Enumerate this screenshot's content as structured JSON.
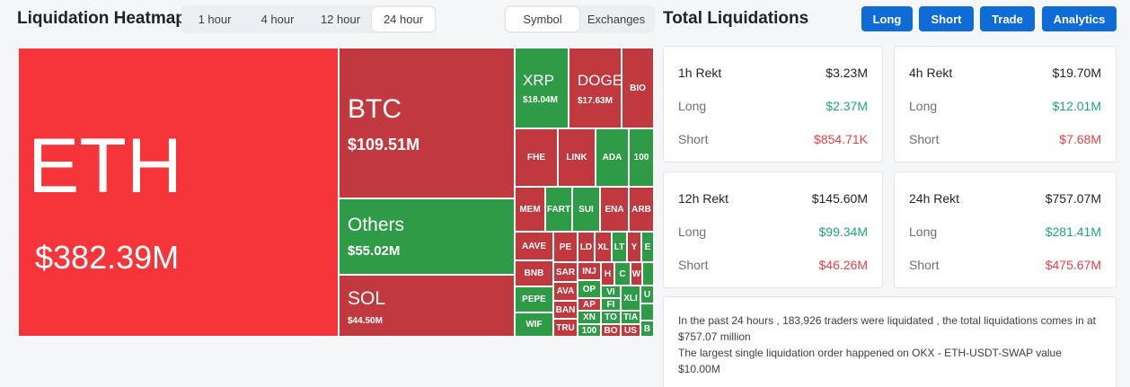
{
  "heatmap": {
    "title": "Liquidation Heatmap",
    "time_options": [
      "1 hour",
      "4 hour",
      "12 hour",
      "24 hour"
    ],
    "time_selected": "24 hour",
    "view_options": [
      "Symbol",
      "Exchanges"
    ],
    "view_selected": "Symbol",
    "tiles": {
      "eth": {
        "symbol": "ETH",
        "value": "$382.39M"
      },
      "btc": {
        "symbol": "BTC",
        "value": "$109.51M"
      },
      "others": {
        "symbol": "Others",
        "value": "$55.02M"
      },
      "sol": {
        "symbol": "SOL",
        "value": "$44.50M"
      },
      "xrp": {
        "symbol": "XRP",
        "value": "$18.04M"
      },
      "doge": {
        "symbol": "DOGE",
        "value": "$17.63M"
      },
      "bio": {
        "symbol": "BIO"
      },
      "fhe": {
        "symbol": "FHE"
      },
      "link": {
        "symbol": "LINK"
      },
      "ada": {
        "symbol": "ADA"
      },
      "t100": {
        "symbol": "100"
      },
      "mem": {
        "symbol": "MEM"
      },
      "fart": {
        "symbol": "FART"
      },
      "sui": {
        "symbol": "SUI"
      },
      "ena": {
        "symbol": "ENA"
      },
      "arb": {
        "symbol": "ARB"
      },
      "aave": {
        "symbol": "AAVE"
      },
      "bnb": {
        "symbol": "BNB"
      },
      "pepe": {
        "symbol": "PEPE"
      },
      "wif": {
        "symbol": "WIF"
      },
      "pe": {
        "symbol": "PE"
      },
      "sar": {
        "symbol": "SAR"
      },
      "ava": {
        "symbol": "AVA"
      },
      "ban": {
        "symbol": "BAN"
      },
      "tru": {
        "symbol": "TRU"
      },
      "ld": {
        "symbol": "LD"
      },
      "xl": {
        "symbol": "XL"
      },
      "inj": {
        "symbol": "INJ"
      },
      "op": {
        "symbol": "OP"
      },
      "ap": {
        "symbol": "AP"
      },
      "xn": {
        "symbol": "XN"
      },
      "t100b": {
        "symbol": "100"
      },
      "lt": {
        "symbol": "LT"
      },
      "h": {
        "symbol": "H"
      },
      "vi": {
        "symbol": "VI"
      },
      "fi": {
        "symbol": "FI"
      },
      "to": {
        "symbol": "TO"
      },
      "bo": {
        "symbol": "BO"
      },
      "y": {
        "symbol": "Y"
      },
      "e": {
        "symbol": "E"
      },
      "c": {
        "symbol": "C"
      },
      "w": {
        "symbol": "W"
      },
      "xli": {
        "symbol": "XLI"
      },
      "tia": {
        "symbol": "TIA"
      },
      "us": {
        "symbol": "US"
      },
      "b": {
        "symbol": "B"
      },
      "u": {
        "symbol": "U"
      }
    }
  },
  "total": {
    "title": "Total Liquidations",
    "buttons": [
      "Long",
      "Short",
      "Trade",
      "Analytics"
    ],
    "cards": [
      {
        "label": "1h Rekt",
        "total": "$3.23M",
        "long_label": "Long",
        "long": "$2.37M",
        "short_label": "Short",
        "short": "$854.71K"
      },
      {
        "label": "4h Rekt",
        "total": "$19.70M",
        "long_label": "Long",
        "long": "$12.01M",
        "short_label": "Short",
        "short": "$7.68M"
      },
      {
        "label": "12h Rekt",
        "total": "$145.60M",
        "long_label": "Long",
        "long": "$99.34M",
        "short_label": "Short",
        "short": "$46.26M"
      },
      {
        "label": "24h Rekt",
        "total": "$757.07M",
        "long_label": "Long",
        "long": "$281.41M",
        "short_label": "Short",
        "short": "$475.67M"
      }
    ],
    "summary_line1": "In the past 24 hours , 183,926 traders were liquidated , the total liquidations comes in at $757.07 million",
    "summary_line2": "The largest single liquidation order happened on OKX - ETH-USDT-SWAP value $10.00M"
  },
  "colors": {
    "long": "#20a87a",
    "short": "#e2414a",
    "accent": "#0f6cd6",
    "tile_red": "#c0393f",
    "tile_bright_red": "#f5353a",
    "tile_green": "#2e9b47"
  }
}
